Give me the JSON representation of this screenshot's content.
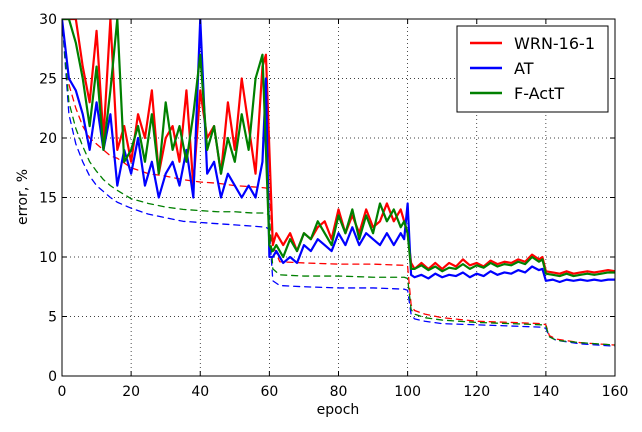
{
  "chart_data": {
    "type": "line",
    "title": "",
    "xlabel": "epoch",
    "ylabel": "error, %",
    "xlim": [
      0,
      160
    ],
    "ylim": [
      0,
      30
    ],
    "xticks": [
      0,
      20,
      40,
      60,
      80,
      100,
      120,
      140,
      160
    ],
    "yticks": [
      0,
      5,
      10,
      15,
      20,
      25,
      30
    ],
    "grid": true,
    "legend_position": "top-right",
    "legend": [
      "WRN-16-1",
      "AT",
      "F-ActT"
    ],
    "series": [
      {
        "name": "WRN-16-1",
        "color": "#ff0000",
        "style": "solid",
        "x": [
          0,
          2,
          4,
          6,
          8,
          10,
          12,
          14,
          16,
          18,
          20,
          22,
          24,
          26,
          28,
          30,
          32,
          34,
          36,
          38,
          40,
          42,
          44,
          46,
          48,
          50,
          52,
          54,
          56,
          58,
          59,
          60,
          61,
          62,
          64,
          66,
          68,
          70,
          72,
          74,
          76,
          78,
          80,
          82,
          84,
          86,
          88,
          90,
          92,
          94,
          96,
          98,
          99,
          100,
          101,
          102,
          104,
          106,
          108,
          110,
          112,
          114,
          116,
          118,
          120,
          122,
          124,
          126,
          128,
          130,
          132,
          134,
          136,
          138,
          139,
          140,
          142,
          144,
          146,
          148,
          150,
          152,
          154,
          156,
          158,
          160
        ],
        "y": [
          30,
          30,
          30,
          26,
          23,
          29,
          20,
          30,
          19,
          21,
          18,
          22,
          20,
          24,
          17,
          20,
          21,
          18,
          24,
          16,
          24,
          20,
          21,
          17,
          23,
          19,
          25,
          21,
          17,
          26,
          27,
          19,
          11,
          12,
          11,
          12,
          10.5,
          12,
          11.5,
          12.5,
          13,
          11.5,
          14,
          12,
          13.5,
          12,
          14,
          12.5,
          13,
          14.5,
          13,
          14,
          13,
          12,
          9.5,
          9,
          9.5,
          9,
          9.5,
          9,
          9.5,
          9.2,
          9.8,
          9.3,
          9.5,
          9.2,
          9.7,
          9.4,
          9.6,
          9.5,
          9.8,
          9.6,
          10.2,
          9.8,
          10,
          8.8,
          8.7,
          8.6,
          8.8,
          8.6,
          8.7,
          8.8,
          8.7,
          8.8,
          8.9,
          8.8
        ]
      },
      {
        "name": "AT",
        "color": "#0000ff",
        "style": "solid",
        "x": [
          0,
          2,
          4,
          6,
          8,
          10,
          12,
          14,
          16,
          18,
          20,
          22,
          24,
          26,
          28,
          30,
          32,
          34,
          36,
          38,
          40,
          42,
          44,
          46,
          48,
          50,
          52,
          54,
          56,
          58,
          59,
          60,
          61,
          62,
          64,
          66,
          68,
          70,
          72,
          74,
          76,
          78,
          80,
          82,
          84,
          86,
          88,
          90,
          92,
          94,
          96,
          98,
          99,
          100,
          101,
          102,
          104,
          106,
          108,
          110,
          112,
          114,
          116,
          118,
          120,
          122,
          124,
          126,
          128,
          130,
          132,
          134,
          136,
          138,
          139,
          140,
          142,
          144,
          146,
          148,
          150,
          152,
          154,
          156,
          158,
          160
        ],
        "y": [
          30,
          25,
          24,
          22,
          19,
          23,
          19,
          22,
          16,
          19,
          17,
          20,
          16,
          18,
          15,
          17,
          18,
          16,
          19,
          15,
          30,
          17,
          18,
          15,
          17,
          16,
          15,
          16,
          15,
          18,
          25,
          10,
          10,
          10.5,
          9.5,
          10,
          9.5,
          11,
          10.5,
          11.5,
          11,
          10.5,
          12,
          11,
          12.5,
          11,
          12,
          11.5,
          11,
          12,
          11,
          12,
          11.5,
          14.5,
          8.5,
          8.3,
          8.5,
          8.2,
          8.6,
          8.3,
          8.5,
          8.4,
          8.7,
          8.3,
          8.6,
          8.4,
          8.8,
          8.5,
          8.7,
          8.6,
          8.9,
          8.7,
          9.2,
          8.9,
          9,
          8,
          8.1,
          7.9,
          8.1,
          8,
          8.1,
          8,
          8.1,
          8,
          8.1,
          8.1
        ]
      },
      {
        "name": "F-ActT",
        "color": "#008000",
        "style": "solid",
        "x": [
          0,
          2,
          4,
          6,
          8,
          10,
          12,
          14,
          16,
          18,
          20,
          22,
          24,
          26,
          28,
          30,
          32,
          34,
          36,
          38,
          40,
          42,
          44,
          46,
          48,
          50,
          52,
          54,
          56,
          58,
          59,
          60,
          61,
          62,
          64,
          66,
          68,
          70,
          72,
          74,
          76,
          78,
          80,
          82,
          84,
          86,
          88,
          90,
          92,
          94,
          96,
          98,
          99,
          100,
          101,
          102,
          104,
          106,
          108,
          110,
          112,
          114,
          116,
          118,
          120,
          122,
          124,
          126,
          128,
          130,
          132,
          134,
          136,
          138,
          139,
          140,
          142,
          144,
          146,
          148,
          150,
          152,
          154,
          156,
          158,
          160
        ],
        "y": [
          30,
          30,
          28,
          25,
          21,
          26,
          19,
          24,
          30,
          18,
          19,
          21,
          18,
          22,
          17,
          23,
          19,
          21,
          18,
          22,
          27,
          19,
          21,
          17,
          20,
          18,
          22,
          19,
          25,
          27,
          19,
          11,
          10.5,
          11,
          10,
          11.5,
          10.5,
          12,
          11.5,
          13,
          12,
          11,
          13.5,
          12,
          14,
          11.5,
          13.5,
          12,
          14.5,
          13,
          14,
          12.5,
          13,
          12,
          9,
          9,
          9.3,
          8.9,
          9.2,
          8.8,
          9.1,
          9,
          9.4,
          9,
          9.3,
          9.1,
          9.5,
          9.2,
          9.4,
          9.3,
          9.6,
          9.4,
          10,
          9.6,
          9.8,
          8.6,
          8.5,
          8.4,
          8.6,
          8.4,
          8.5,
          8.6,
          8.5,
          8.6,
          8.7,
          8.7
        ]
      },
      {
        "name": "",
        "color": "#ff0000",
        "style": "dashed",
        "x": [
          0,
          2,
          4,
          6,
          8,
          10,
          12,
          14,
          16,
          20,
          25,
          30,
          35,
          40,
          45,
          50,
          55,
          59,
          60,
          61,
          63,
          70,
          80,
          90,
          99,
          100,
          101,
          102,
          105,
          110,
          120,
          130,
          139,
          140,
          141,
          143,
          150,
          160
        ],
        "y": [
          30,
          24.5,
          22.5,
          21,
          20,
          19.5,
          19,
          18.5,
          18.3,
          17.5,
          17,
          16.8,
          16.5,
          16.3,
          16.2,
          16,
          15.9,
          15.8,
          15.6,
          11,
          9.6,
          9.5,
          9.4,
          9.4,
          9.3,
          9.2,
          6,
          5.5,
          5.2,
          4.9,
          4.6,
          4.5,
          4.4,
          4.3,
          3.4,
          3.1,
          2.8,
          2.6
        ]
      },
      {
        "name": "",
        "color": "#0000ff",
        "style": "dashed",
        "x": [
          0,
          2,
          4,
          6,
          8,
          10,
          12,
          14,
          16,
          20,
          25,
          30,
          35,
          40,
          45,
          50,
          55,
          59,
          60,
          61,
          63,
          70,
          80,
          90,
          99,
          100,
          101,
          102,
          105,
          110,
          120,
          130,
          139,
          140,
          141,
          143,
          150,
          160
        ],
        "y": [
          30,
          22,
          19.5,
          18,
          16.8,
          16,
          15.5,
          15,
          14.6,
          14.1,
          13.6,
          13.3,
          13,
          12.9,
          12.8,
          12.7,
          12.6,
          12.5,
          12.3,
          8,
          7.6,
          7.5,
          7.4,
          7.4,
          7.3,
          7.2,
          5.2,
          4.8,
          4.6,
          4.4,
          4.3,
          4.2,
          4.1,
          4,
          3.3,
          3,
          2.7,
          2.5
        ]
      },
      {
        "name": "",
        "color": "#008000",
        "style": "dashed",
        "x": [
          0,
          2,
          4,
          6,
          8,
          10,
          12,
          14,
          16,
          20,
          25,
          30,
          35,
          40,
          45,
          50,
          55,
          59,
          60,
          61,
          63,
          70,
          80,
          90,
          99,
          100,
          101,
          102,
          105,
          110,
          120,
          130,
          139,
          140,
          141,
          143,
          150,
          160
        ],
        "y": [
          30,
          23,
          20.8,
          19.3,
          18,
          17.2,
          16.5,
          16,
          15.6,
          14.9,
          14.5,
          14.2,
          14,
          13.9,
          13.8,
          13.8,
          13.7,
          13.7,
          13.5,
          9,
          8.5,
          8.4,
          8.4,
          8.3,
          8.3,
          8.2,
          5.6,
          5.2,
          4.9,
          4.7,
          4.5,
          4.4,
          4.3,
          4.2,
          3.3,
          3,
          2.8,
          2.6
        ]
      }
    ]
  }
}
